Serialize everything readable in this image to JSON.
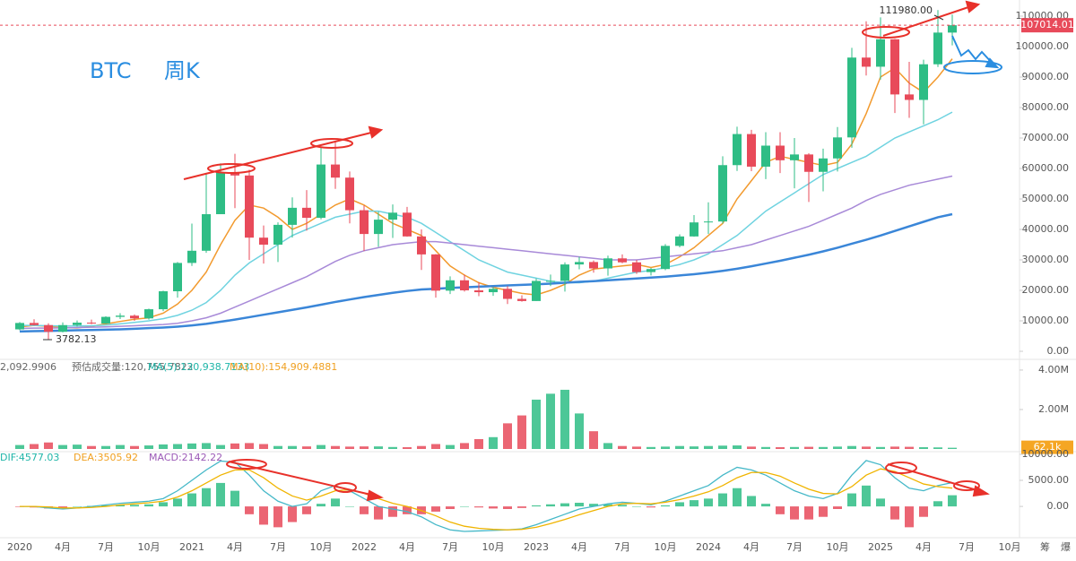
{
  "header": {
    "symbol": "BTC",
    "period": "周K"
  },
  "toolbar": [
    "筹",
    "爆"
  ],
  "chart_data": [
    {
      "type": "candlestick",
      "categories": [
        "2020",
        null,
        null,
        "4月",
        null,
        null,
        "7月",
        null,
        null,
        "10月",
        null,
        null,
        "2021",
        null,
        null,
        "4月",
        null,
        null,
        "7月",
        null,
        null,
        "10月",
        null,
        null,
        "2022",
        null,
        null,
        "4月",
        null,
        null,
        "7月",
        null,
        null,
        "10月",
        null,
        null,
        "2023",
        null,
        null,
        "4月",
        null,
        null,
        "7月",
        null,
        null,
        "10月",
        null,
        null,
        "2024",
        null,
        null,
        "4月",
        null,
        null,
        "7月",
        null,
        null,
        "10月",
        null,
        null,
        "2025",
        null,
        null,
        "4月",
        null,
        null,
        "7月",
        null,
        null,
        "10月"
      ],
      "open": [
        7200,
        9300,
        8600,
        6400,
        8600,
        9400,
        9100,
        11300,
        11700,
        10800,
        13800,
        19700,
        29000,
        33000,
        45000,
        58800,
        57700,
        37300,
        35000,
        41500,
        47100,
        43800,
        61300,
        57000,
        46300,
        38500,
        43200,
        45500,
        37700,
        31800,
        19900,
        23300,
        20000,
        19400,
        20500,
        17200,
        16500,
        23100,
        23100,
        28500,
        29300,
        27200,
        30500,
        29200,
        26000,
        27000,
        34600,
        37700,
        42300,
        42600,
        61100,
        71300,
        60600,
        67500,
        62700,
        64600,
        58900,
        63300,
        70200,
        96400,
        93400,
        102400,
        84300,
        82500,
        94200,
        104600,
        null,
        null,
        null,
        null
      ],
      "high": [
        9600,
        10500,
        9200,
        9500,
        10100,
        10400,
        11500,
        12500,
        12100,
        14000,
        19900,
        29300,
        41900,
        58300,
        61700,
        64800,
        59600,
        41300,
        42300,
        50500,
        52900,
        67000,
        69000,
        59000,
        47900,
        45800,
        48200,
        47400,
        40000,
        31900,
        24600,
        25200,
        22700,
        21000,
        21400,
        18400,
        23900,
        25200,
        29200,
        31000,
        29800,
        31400,
        31800,
        30000,
        27400,
        35200,
        38400,
        44700,
        48900,
        64000,
        73700,
        72700,
        71900,
        71900,
        70000,
        65000,
        66500,
        73600,
        99600,
        108300,
        109600,
        102500,
        95000,
        95700,
        111980,
        110500,
        null,
        null,
        null,
        null
      ],
      "low": [
        6900,
        8500,
        3782.13,
        6200,
        8100,
        8900,
        9000,
        10600,
        10000,
        10400,
        13200,
        17600,
        28000,
        32300,
        45000,
        47000,
        30000,
        28800,
        29300,
        37300,
        39600,
        43300,
        53300,
        42000,
        32900,
        34300,
        37200,
        37600,
        26700,
        17600,
        18800,
        19600,
        18100,
        18200,
        15500,
        16300,
        16500,
        21400,
        19600,
        26900,
        25800,
        24800,
        28900,
        25400,
        24900,
        26600,
        34100,
        37600,
        38500,
        41900,
        59200,
        59100,
        56500,
        58500,
        53500,
        49000,
        52500,
        59000,
        66800,
        90500,
        89200,
        78200,
        76600,
        74500,
        93300,
        100400,
        null,
        null,
        null,
        null
      ],
      "close": [
        9300,
        8600,
        6400,
        8600,
        9400,
        9100,
        11300,
        11700,
        10800,
        13800,
        19700,
        29000,
        33000,
        45000,
        58800,
        57700,
        37300,
        35000,
        41500,
        47100,
        43800,
        61300,
        57000,
        46300,
        38500,
        43200,
        45500,
        37700,
        31800,
        19900,
        23300,
        20000,
        19400,
        20500,
        17200,
        16500,
        23100,
        23100,
        28500,
        29300,
        27200,
        30500,
        29200,
        26000,
        27000,
        34600,
        37700,
        42300,
        42600,
        61100,
        71300,
        60600,
        67500,
        62700,
        64600,
        58900,
        63300,
        70200,
        96400,
        93400,
        102400,
        84300,
        82500,
        94200,
        104600,
        107014.01,
        null,
        null,
        null,
        null
      ],
      "up_color": "#2ebd85",
      "down_color": "#e84a5a",
      "series": [
        {
          "color": "#f29a2e",
          "values": [
            8000,
            8500,
            8200,
            7800,
            7700,
            8200,
            9000,
            9800,
            10500,
            11000,
            12500,
            15500,
            20000,
            26000,
            35000,
            43000,
            48000,
            47000,
            44000,
            40000,
            42000,
            45000,
            48000,
            50000,
            48000,
            45000,
            42000,
            40000,
            38000,
            33000,
            28000,
            25000,
            22500,
            21000,
            20000,
            19000,
            18500,
            20000,
            22000,
            25000,
            27000,
            27500,
            28000,
            28500,
            27500,
            28500,
            31000,
            34000,
            38000,
            42000,
            50000,
            56000,
            62000,
            64000,
            63000,
            62000,
            61000,
            62000,
            68000,
            78000,
            90000,
            93000,
            88000,
            85000,
            90000,
            96000,
            null,
            null,
            null,
            null
          ]
        },
        {
          "color": "#6fd3e0",
          "values": [
            8500,
            8500,
            8400,
            8300,
            8300,
            8400,
            8600,
            9000,
            9500,
            10000,
            10700,
            11800,
            13500,
            16000,
            20000,
            25000,
            29000,
            32000,
            35000,
            38000,
            40000,
            42000,
            44000,
            45000,
            46000,
            46000,
            45000,
            44000,
            42000,
            39000,
            36000,
            33000,
            30000,
            28000,
            26000,
            25000,
            24000,
            23000,
            22500,
            22500,
            23000,
            24000,
            25000,
            26000,
            26500,
            27500,
            28500,
            30000,
            32000,
            35000,
            38000,
            42000,
            46000,
            49000,
            52000,
            55000,
            58000,
            60000,
            62000,
            64000,
            67000,
            70000,
            72000,
            74000,
            76000,
            78500,
            null,
            null,
            null,
            null
          ]
        },
        {
          "color": "#a88ad8",
          "values": [
            7500,
            7600,
            7600,
            7700,
            7800,
            7900,
            8000,
            8200,
            8400,
            8600,
            8800,
            9200,
            10000,
            11000,
            12500,
            14500,
            16500,
            18500,
            20500,
            22500,
            24500,
            27000,
            29500,
            31500,
            33000,
            34000,
            35000,
            35500,
            36000,
            36000,
            35500,
            35000,
            34500,
            34000,
            33500,
            33000,
            32500,
            32000,
            31500,
            31000,
            30500,
            30000,
            30000,
            30000,
            30500,
            31000,
            31500,
            32000,
            32500,
            33000,
            34000,
            35000,
            36500,
            38000,
            39500,
            41000,
            43000,
            45000,
            47000,
            49500,
            51500,
            53000,
            54500,
            55500,
            56500,
            57500,
            null,
            null,
            null,
            null
          ]
        },
        {
          "color": "#3a86d8",
          "values": [
            6500,
            6600,
            6700,
            6800,
            6900,
            7000,
            7100,
            7200,
            7400,
            7600,
            7800,
            8100,
            8500,
            9000,
            9700,
            10400,
            11200,
            12000,
            12800,
            13600,
            14400,
            15300,
            16200,
            17000,
            17800,
            18500,
            19200,
            19800,
            20300,
            20500,
            20800,
            21000,
            21200,
            21400,
            21600,
            21800,
            22000,
            22200,
            22500,
            22800,
            23000,
            23300,
            23600,
            23900,
            24200,
            24500,
            24900,
            25300,
            25800,
            26400,
            27100,
            27900,
            28800,
            29700,
            30700,
            31700,
            32800,
            34000,
            35300,
            36600,
            38000,
            39500,
            41000,
            42500,
            44000,
            45000,
            null,
            null,
            null,
            null
          ]
        }
      ],
      "ylim": [
        0,
        110000
      ],
      "yticks": [
        {
          "value": 0,
          "label": "0.00"
        },
        {
          "value": 10000,
          "label": "10000.00"
        },
        {
          "value": 20000,
          "label": "20000.00"
        },
        {
          "value": 30000,
          "label": "30000.00"
        },
        {
          "value": 40000,
          "label": "40000.00"
        },
        {
          "value": 50000,
          "label": "50000.00"
        },
        {
          "value": 60000,
          "label": "60000.00"
        },
        {
          "value": 70000,
          "label": "70000.00"
        },
        {
          "value": 80000,
          "label": "80000.00"
        },
        {
          "value": 90000,
          "label": "90000.00"
        },
        {
          "value": 100000,
          "label": "100000.00"
        },
        {
          "value": 110000,
          "label": "110000.00"
        }
      ],
      "last_price": {
        "value": 107014.01,
        "label": "107014.01"
      },
      "max_label": "111980.00",
      "min_label": "3782.13",
      "grid": false
    },
    {
      "type": "bar",
      "legend": [
        "2,092.9906",
        "预估成交量:120,755.7822",
        "MA(5):130,938.7133",
        "MA(10):154,909.4881"
      ],
      "values": [
        200000,
        250000,
        330000,
        200000,
        220000,
        150000,
        150000,
        200000,
        150000,
        180000,
        230000,
        250000,
        280000,
        300000,
        200000,
        280000,
        300000,
        250000,
        150000,
        150000,
        130000,
        200000,
        150000,
        120000,
        130000,
        130000,
        100000,
        90000,
        150000,
        250000,
        200000,
        300000,
        500000,
        600000,
        1300000,
        1700000,
        2500000,
        2800000,
        3000000,
        1800000,
        900000,
        300000,
        150000,
        120000,
        100000,
        120000,
        150000,
        130000,
        150000,
        170000,
        180000,
        120000,
        100000,
        90000,
        100000,
        110000,
        100000,
        120000,
        150000,
        120000,
        100000,
        120000,
        110000,
        90000,
        80000,
        62100,
        null,
        null,
        null,
        null
      ],
      "ylim": [
        0,
        4360000
      ],
      "yticks": [
        {
          "value": 4000000,
          "label": "4.00M"
        },
        {
          "value": 2000000,
          "label": "2.00M"
        }
      ],
      "last": {
        "value": 62100,
        "label": "62.1k"
      }
    },
    {
      "type": "macd",
      "legend": [
        "DIF:4577.03",
        "DEA:3505.92",
        "MACD:2142.22"
      ],
      "values": [
        -100,
        -200,
        -400,
        -300,
        0,
        100,
        200,
        300,
        300,
        400,
        800,
        1500,
        2500,
        3500,
        4500,
        3000,
        -1500,
        -3500,
        -4000,
        -3000,
        -1500,
        500,
        1500,
        0,
        -1500,
        -2500,
        -2000,
        -1500,
        -1500,
        -1000,
        -500,
        0,
        -200,
        -400,
        -500,
        -300,
        200,
        400,
        600,
        700,
        500,
        400,
        300,
        0,
        -200,
        200,
        800,
        1200,
        1500,
        2500,
        3500,
        2000,
        500,
        -1500,
        -2500,
        -2500,
        -2000,
        -500,
        2500,
        4000,
        1500,
        -2500,
        -4000,
        -2000,
        1000,
        2142.22,
        null,
        null,
        null,
        null
      ],
      "series": [
        {
          "color": "#45b8c8",
          "values": [
            0,
            0,
            -300,
            -500,
            -300,
            0,
            300,
            600,
            800,
            1000,
            1500,
            3000,
            5000,
            7000,
            8700,
            8500,
            6000,
            3000,
            1000,
            0,
            500,
            3000,
            4000,
            3000,
            1500,
            0,
            -500,
            -1000,
            -2000,
            -3500,
            -4500,
            -4800,
            -4700,
            -4600,
            -4500,
            -4300,
            -3500,
            -2500,
            -1500,
            -500,
            0,
            500,
            800,
            600,
            300,
            1000,
            2000,
            3000,
            4000,
            6000,
            7500,
            7000,
            6000,
            4500,
            3000,
            2000,
            1500,
            2500,
            6000,
            8800,
            8000,
            5500,
            3500,
            3000,
            4000,
            4577.03,
            null,
            null,
            null,
            null
          ]
        },
        {
          "color": "#f0b400",
          "values": [
            0,
            0,
            -100,
            -300,
            -300,
            -200,
            0,
            300,
            500,
            700,
            1000,
            1800,
            3000,
            4500,
            6000,
            7000,
            7000,
            5500,
            3500,
            2000,
            1200,
            2000,
            3000,
            3200,
            2500,
            1500,
            600,
            0,
            -800,
            -1800,
            -3000,
            -3800,
            -4200,
            -4400,
            -4500,
            -4400,
            -4000,
            -3300,
            -2500,
            -1600,
            -800,
            0,
            500,
            600,
            500,
            800,
            1300,
            2000,
            2800,
            4000,
            5500,
            6500,
            6500,
            5800,
            4500,
            3300,
            2500,
            2400,
            3800,
            6000,
            7200,
            6700,
            5500,
            4300,
            3800,
            3505.92,
            null,
            null,
            null,
            null
          ]
        }
      ],
      "pos_color": "#2ebd85",
      "neg_color": "#e84a5a",
      "ylim": [
        -6000,
        10500
      ],
      "yticks": [
        {
          "value": 10000,
          "label": "10000.00"
        },
        {
          "value": 5000,
          "label": "5000.00"
        },
        {
          "value": 0,
          "label": "0.00"
        }
      ]
    }
  ]
}
